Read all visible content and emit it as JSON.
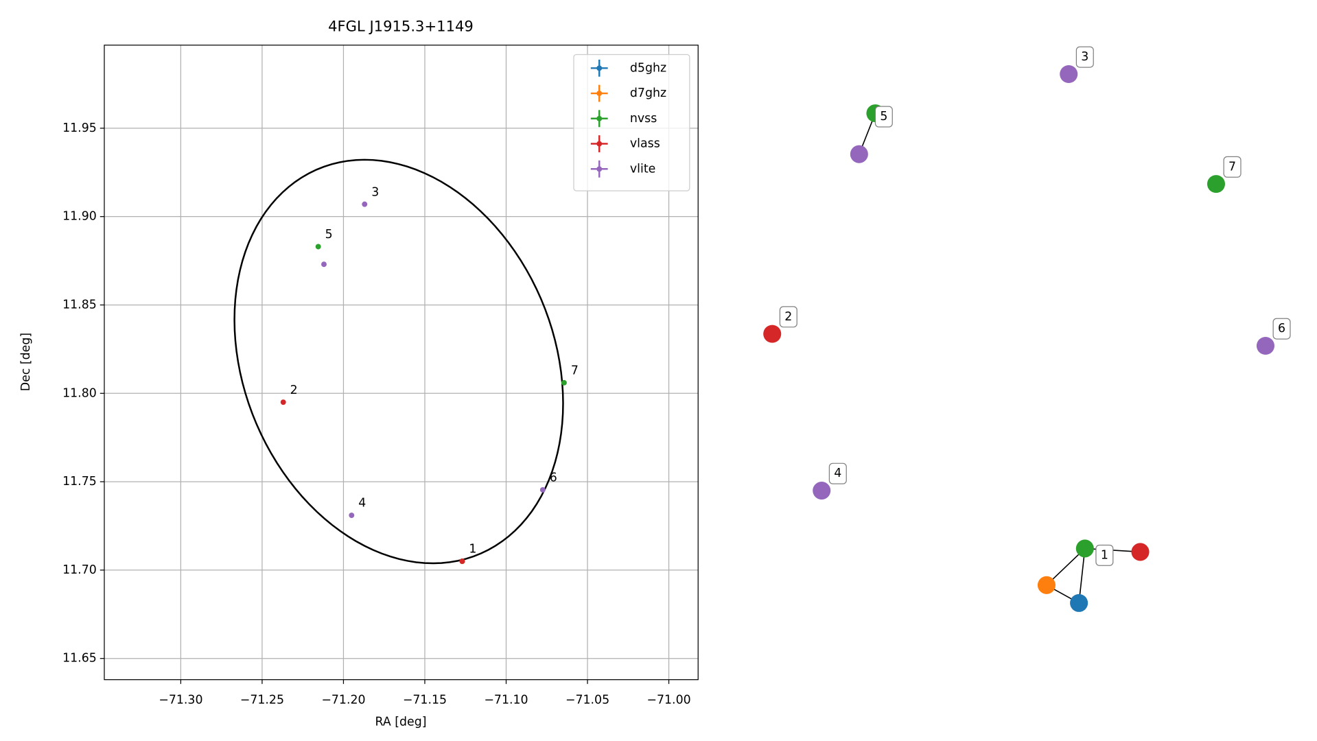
{
  "chart_data": [
    {
      "type": "scatter",
      "title": "4FGL J1915.3+1149",
      "x_label": "RA [deg]",
      "y_label": "Dec [deg]",
      "xlim": [
        -71.347,
        -70.982
      ],
      "ylim": [
        11.638,
        11.997
      ],
      "xticks": [
        {
          "value": -71.3,
          "label": "−71.30"
        },
        {
          "value": -71.25,
          "label": "−71.25"
        },
        {
          "value": -71.2,
          "label": "−71.20"
        },
        {
          "value": -71.15,
          "label": "−71.15"
        },
        {
          "value": -71.1,
          "label": "−71.10"
        },
        {
          "value": -71.05,
          "label": "−71.05"
        },
        {
          "value": -71.0,
          "label": "−71.00"
        }
      ],
      "yticks": [
        11.65,
        {
          "value": 11.7,
          "label": "11.70"
        },
        11.75,
        {
          "value": 11.8,
          "label": "11.80"
        },
        11.85,
        {
          "value": 11.9,
          "label": "11.90"
        },
        11.95
      ],
      "grid": true,
      "legend": "upper right",
      "series": [
        {
          "name": "d5ghz",
          "color": "#1f77b4",
          "x": [
            -71.127
          ],
          "y": [
            11.705
          ]
        },
        {
          "name": "d7ghz",
          "color": "#ff7f0e",
          "x": [
            -71.127
          ],
          "y": [
            11.705
          ]
        },
        {
          "name": "nvss",
          "color": "#2ca02c",
          "x": [
            -71.127,
            -71.2155,
            -71.0644
          ],
          "y": [
            11.705,
            11.883,
            11.806
          ]
        },
        {
          "name": "vlass",
          "color": "#d62728",
          "x": [
            -71.127,
            -71.237
          ],
          "y": [
            11.705,
            11.795
          ]
        },
        {
          "name": "vlite",
          "color": "#9467bd",
          "x": [
            -71.187,
            -71.195,
            -71.212,
            -71.0775
          ],
          "y": [
            11.907,
            11.731,
            11.873,
            11.7454
          ]
        }
      ],
      "annotations": [
        {
          "text": "1",
          "x": -71.127,
          "y": 11.705
        },
        {
          "text": "2",
          "x": -71.237,
          "y": 11.795
        },
        {
          "text": "3",
          "x": -71.187,
          "y": 11.907
        },
        {
          "text": "4",
          "x": -71.195,
          "y": 11.731
        },
        {
          "text": "5",
          "x": -71.2155,
          "y": 11.883
        },
        {
          "text": "6",
          "x": -71.0775,
          "y": 11.7454
        },
        {
          "text": "7",
          "x": -71.0644,
          "y": 11.806
        }
      ],
      "ellipse": {
        "x0": -71.166,
        "y0": 11.818,
        "semi_major": 0.12,
        "semi_minor": 0.094,
        "angle": 119.7,
        "color": "#000000"
      }
    },
    {
      "type": "network",
      "nodes": [
        {
          "label": "1",
          "color": "#2ca02c"
        },
        {
          "color": "#d62728"
        },
        {
          "color": "#ff7f0e"
        },
        {
          "color": "#1f77b4"
        },
        {
          "label": "2",
          "color": "#d62728"
        },
        {
          "label": "3",
          "color": "#9467bd"
        },
        {
          "label": "4",
          "color": "#9467bd"
        },
        {
          "label": "5",
          "color": "#2ca02c"
        },
        {
          "color": "#9467bd"
        },
        {
          "label": "6",
          "color": "#9467bd"
        },
        {
          "label": "7",
          "color": "#2ca02c"
        }
      ],
      "edges": [
        [
          0,
          1
        ],
        [
          0,
          2
        ],
        [
          0,
          3
        ],
        [
          2,
          3
        ],
        [
          7,
          8
        ]
      ]
    }
  ]
}
